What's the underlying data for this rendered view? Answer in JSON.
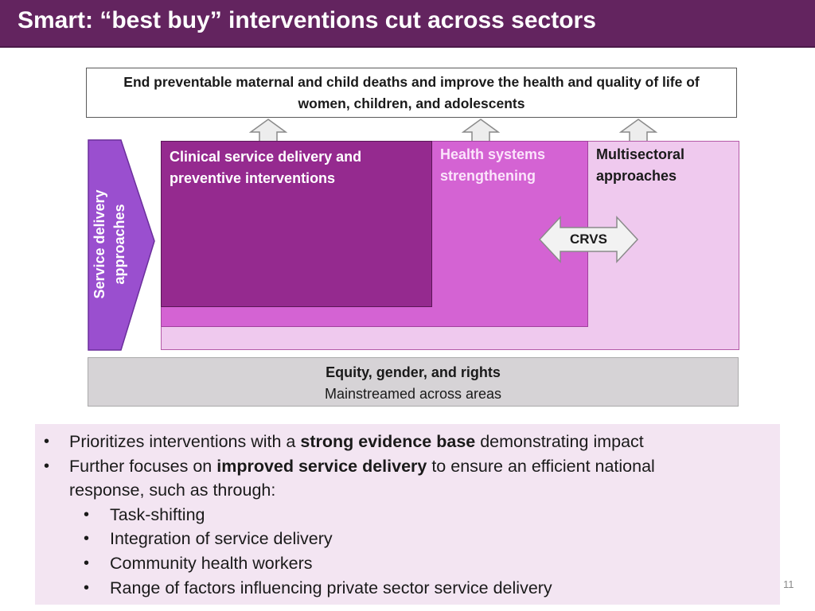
{
  "title": "Smart:  “best buy” interventions cut across sectors",
  "goal_text": "End preventable maternal and child deaths and improve the health and quality of life of women, children, and adolescents",
  "chevron_label": {
    "line1": "Service delivery",
    "line2": "approaches"
  },
  "boxes": {
    "clinical": "Clinical service delivery and preventive interventions",
    "hss": "Health systems strengthening",
    "multisectoral": "Multisectoral approaches"
  },
  "crvs_label": "CRVS",
  "equity": {
    "title": "Equity, gender, and rights",
    "subtitle": "Mainstreamed across areas"
  },
  "bullets": {
    "b1_pre": "Prioritizes interventions with a ",
    "b1_bold": "strong evidence base",
    "b1_post": " demonstrating impact",
    "b2_pre": "Further focuses on ",
    "b2_bold": "improved service delivery",
    "b2_post": " to ensure an efficient national",
    "b2_cont": "response, such as through:",
    "sub": [
      "Task-shifting",
      "Integration of service delivery",
      "Community health workers",
      "Range of factors influencing private sector service delivery"
    ]
  },
  "page_number": "11",
  "colors": {
    "title_bar": "#63245f",
    "chevron": "#9a4fcf",
    "clinical": "#952a8f",
    "hss": "#d463d3",
    "multisectoral": "#efc9ee",
    "equity": "#d6d3d6",
    "bullet_bg": "#f3e5f2"
  }
}
